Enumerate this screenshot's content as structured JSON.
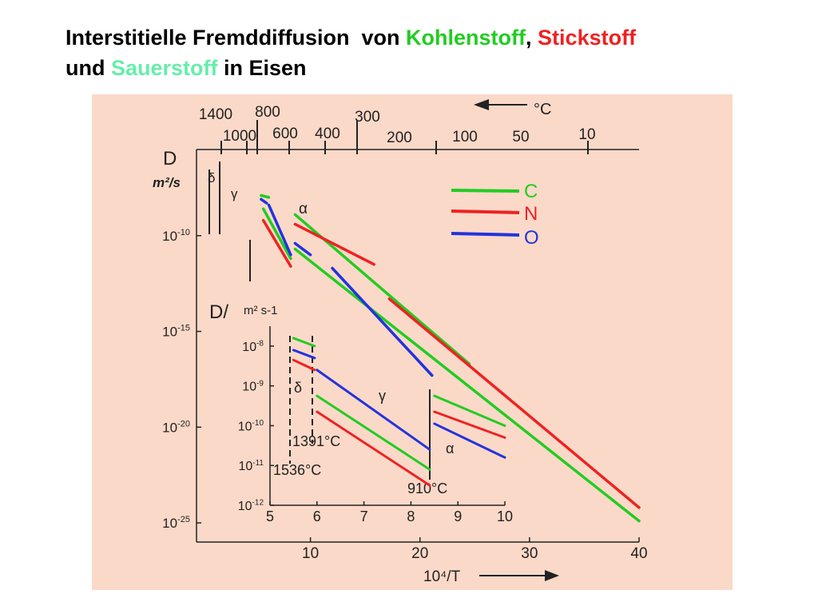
{
  "title": {
    "part1": "Interstitielle Fremddiffusion  von ",
    "carbon": "Kohlenstoff",
    "comma": ", ",
    "nitrogen": "Stickstoff",
    "part2": "und ",
    "oxygen": "Sauerstoff",
    "part3": " in Eisen"
  },
  "colors": {
    "carbon": "#22cc22",
    "nitrogen": "#ee2222",
    "oxygen": "#66eeaa",
    "plot_bg": "#fbd9c8",
    "C": "#22cc22",
    "N": "#ee2222",
    "O": "#2233dd"
  },
  "chart_data": [
    {
      "type": "line",
      "title": "",
      "ylabel": "D",
      "yunit": "m²/s",
      "xlabel": "10⁴/T",
      "xlim": [
        0,
        40
      ],
      "ylim": [
        -26,
        -5.5
      ],
      "ylog": true,
      "x_ticks": [
        10,
        20,
        30,
        40
      ],
      "x_tick_labels": [
        "10",
        "20",
        "30",
        "40"
      ],
      "y_ticks": [
        -10,
        -15,
        -20,
        -25
      ],
      "y_tick_labels": [
        "10-10",
        "10-15",
        "10-20",
        "10-25"
      ],
      "top_axis_label": "°C",
      "top_ticks_row1": [
        "1400",
        "800",
        "300"
      ],
      "top_ticks_row2": [
        "1000",
        "600",
        "400",
        "200",
        "100",
        "50",
        "10"
      ],
      "phase_labels": [
        "δ",
        "γ",
        "α"
      ],
      "legend": [
        "C",
        "N",
        "O"
      ],
      "legend_position": "top-right",
      "series": [
        {
          "name": "C",
          "segments": [
            [
              [
                5.5,
                -7.9
              ],
              [
                6.2,
                -8.0
              ]
            ],
            [
              [
                5.7,
                -8.6
              ],
              [
                8.2,
                -11.2
              ]
            ],
            [
              [
                8.6,
                -8.9
              ],
              [
                24.5,
                -16.7
              ]
            ],
            [
              [
                8.6,
                -10.7
              ],
              [
                40.0,
                -24.9
              ]
            ]
          ]
        },
        {
          "name": "N",
          "segments": [
            [
              [
                5.7,
                -9.2
              ],
              [
                8.2,
                -11.6
              ]
            ],
            [
              [
                8.6,
                -9.4
              ],
              [
                15.8,
                -11.5
              ]
            ],
            [
              [
                17.2,
                -13.3
              ],
              [
                40.0,
                -24.2
              ]
            ]
          ]
        },
        {
          "name": "O",
          "segments": [
            [
              [
                5.5,
                -8.1
              ],
              [
                6.0,
                -8.3
              ]
            ],
            [
              [
                6.2,
                -8.4
              ],
              [
                8.2,
                -11.0
              ]
            ],
            [
              [
                8.6,
                -10.4
              ],
              [
                10.0,
                -11.0
              ]
            ],
            [
              [
                12.0,
                -11.7
              ],
              [
                21.1,
                -17.3
              ]
            ]
          ]
        }
      ]
    },
    {
      "type": "line",
      "title": "",
      "ylabel": "D/",
      "yunit": "m² s-1",
      "xlabel": "",
      "xlim": [
        5,
        10
      ],
      "ylim": [
        -12,
        -7.5
      ],
      "ylog": true,
      "x_ticks": [
        5,
        6,
        7,
        8,
        9,
        10
      ],
      "x_tick_labels": [
        "5",
        "6",
        "7",
        "8",
        "9",
        "10"
      ],
      "y_ticks": [
        -8,
        -9,
        -10,
        -11,
        -12
      ],
      "y_tick_labels": [
        "10-8",
        "10-9",
        "10-10",
        "10-11",
        "10-12"
      ],
      "phase_labels": [
        "δ",
        "γ",
        "α"
      ],
      "annotations": [
        "1391°C",
        "1536°C",
        "910°C"
      ],
      "series": [
        {
          "name": "C",
          "segments": [
            [
              [
                5.5,
                -7.8
              ],
              [
                5.95,
                -8.0
              ]
            ],
            [
              [
                6.0,
                -9.25
              ],
              [
                8.4,
                -11.1
              ]
            ],
            [
              [
                8.5,
                -9.25
              ],
              [
                10.0,
                -10.0
              ]
            ]
          ]
        },
        {
          "name": "N",
          "segments": [
            [
              [
                5.5,
                -8.35
              ],
              [
                5.95,
                -8.6
              ]
            ],
            [
              [
                6.0,
                -9.65
              ],
              [
                8.4,
                -11.5
              ]
            ],
            [
              [
                8.5,
                -9.65
              ],
              [
                10.0,
                -10.3
              ]
            ]
          ]
        },
        {
          "name": "O",
          "segments": [
            [
              [
                5.5,
                -8.1
              ],
              [
                5.95,
                -8.3
              ]
            ],
            [
              [
                6.0,
                -8.6
              ],
              [
                8.4,
                -10.6
              ]
            ],
            [
              [
                8.5,
                -9.95
              ],
              [
                10.0,
                -10.8
              ]
            ]
          ]
        }
      ]
    }
  ]
}
